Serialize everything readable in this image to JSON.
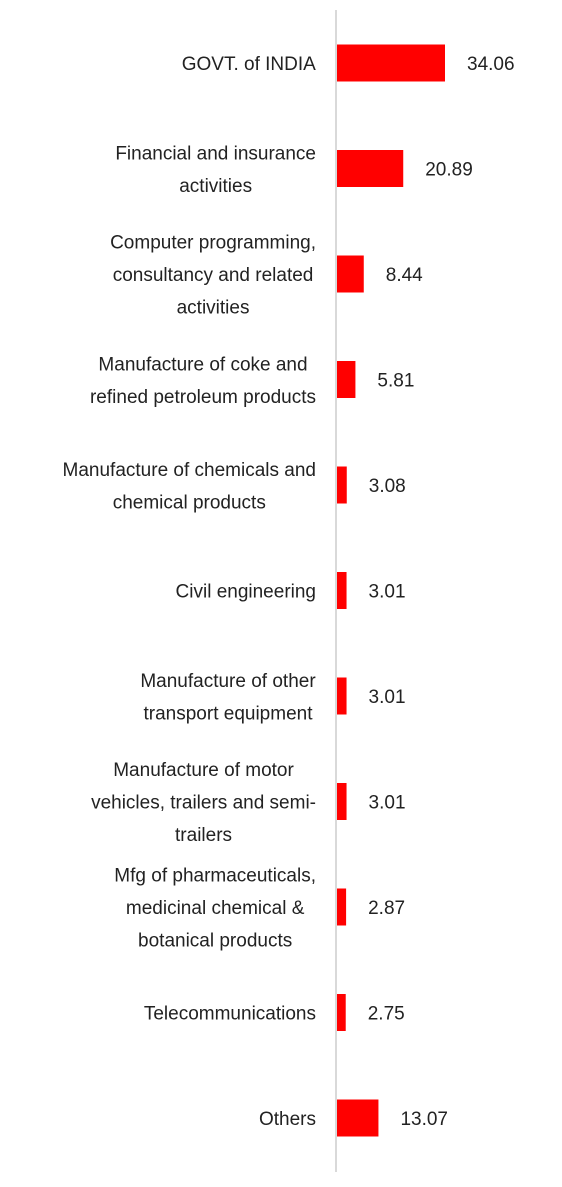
{
  "chart_data": {
    "type": "bar",
    "orientation": "horizontal",
    "categories": [
      "GOVT. of INDIA",
      "Financial and insurance activities",
      "Computer programming, consultancy and related activities",
      "Manufacture of coke and refined petroleum products",
      "Manufacture of chemicals and chemical products",
      "Civil engineering",
      "Manufacture of other transport equipment",
      "Manufacture of motor vehicles, trailers and semi-trailers",
      "Mfg of pharmaceuticals, medicinal chemical & botanical products",
      "Telecommunications",
      "Others"
    ],
    "category_lines": [
      [
        "GOVT. of INDIA"
      ],
      [
        "Financial and insurance",
        "activities"
      ],
      [
        "Computer programming,",
        "consultancy and related",
        "activities"
      ],
      [
        "Manufacture of coke and",
        "refined petroleum products"
      ],
      [
        "Manufacture of chemicals and",
        "chemical products"
      ],
      [
        "Civil engineering"
      ],
      [
        "Manufacture of other",
        "transport equipment"
      ],
      [
        "Manufacture of motor",
        "vehicles, trailers and semi-",
        "trailers"
      ],
      [
        "Mfg of pharmaceuticals,",
        "medicinal chemical &",
        "botanical products"
      ],
      [
        "Telecommunications"
      ],
      [
        "Others"
      ]
    ],
    "values": [
      34.06,
      20.89,
      8.44,
      5.81,
      3.08,
      3.01,
      3.01,
      3.01,
      2.87,
      2.75,
      13.07
    ],
    "value_labels": [
      "34.06",
      "20.89",
      "8.44",
      "5.81",
      "3.08",
      "3.01",
      "3.01",
      "3.01",
      "2.87",
      "2.75",
      "13.07"
    ],
    "title": "",
    "xlabel": "",
    "ylabel": "",
    "xlim": [
      0,
      40
    ],
    "grid": false,
    "legend": "none",
    "bar_color": "#ff0000",
    "axis_color": "#d9d9d9",
    "text_color": "#222222"
  }
}
